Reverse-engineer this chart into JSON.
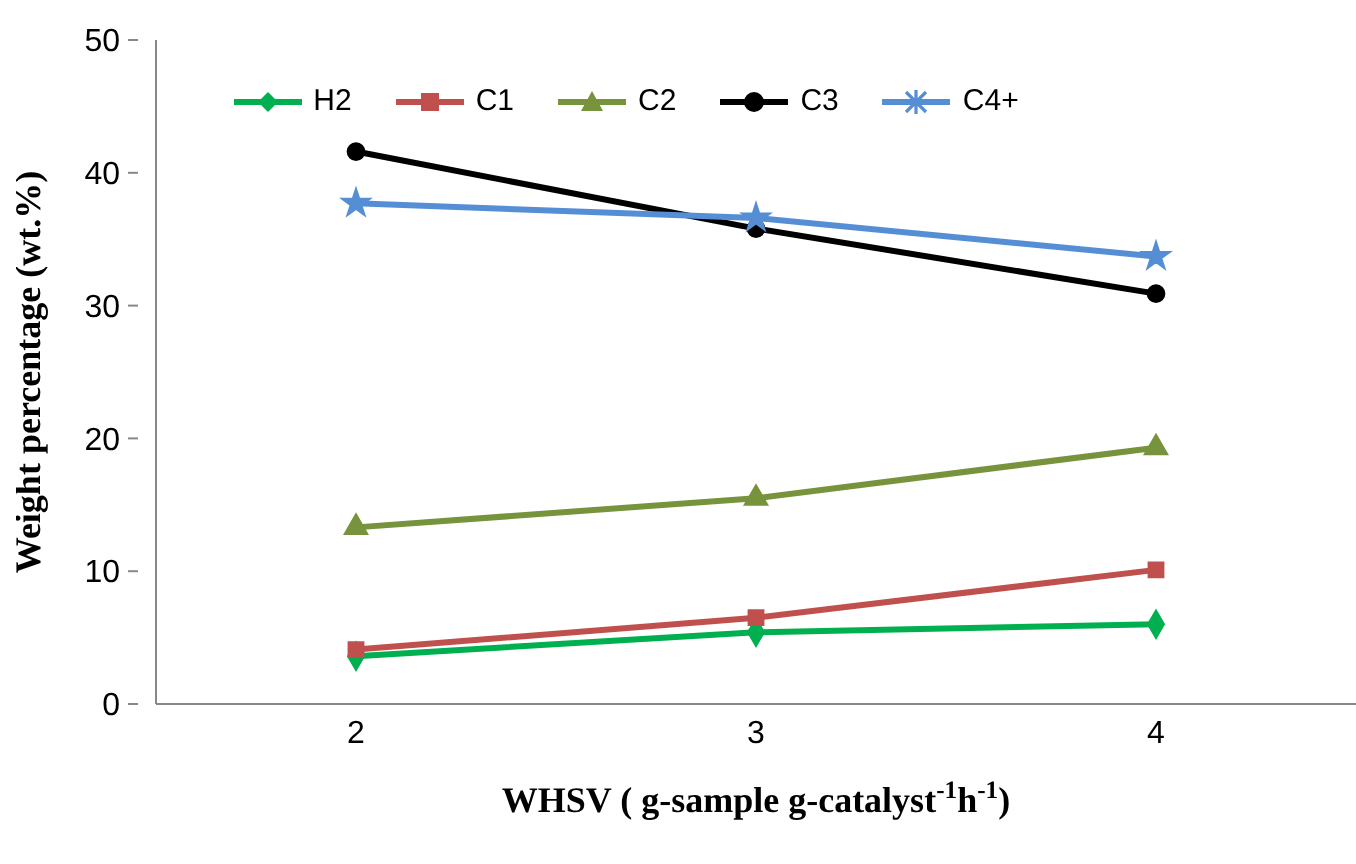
{
  "chart_data": {
    "type": "line",
    "xlabel": "WHSV ( g-sample g-catalyst$^{-1}$h$^{-1}$)",
    "ylabel": "Weight percentage (wt.%)",
    "x": [
      2,
      3,
      4
    ],
    "xlim": [
      1.5,
      4.5
    ],
    "xticks": [
      2,
      3,
      4
    ],
    "ylim": [
      0,
      50
    ],
    "yticks": [
      0,
      10,
      20,
      30,
      40,
      50
    ],
    "grid": false,
    "legend": "top",
    "series": [
      {
        "name": "H2",
        "color": "#00b050",
        "marker": "diamond",
        "values": [
          3.6,
          5.4,
          6.0
        ]
      },
      {
        "name": "C1",
        "color": "#c0504d",
        "marker": "square",
        "values": [
          4.1,
          6.5,
          10.1
        ]
      },
      {
        "name": "C2",
        "color": "#77933c",
        "marker": "triangle",
        "values": [
          13.3,
          15.5,
          19.3
        ]
      },
      {
        "name": "C3",
        "color": "#000000",
        "marker": "circle",
        "values": [
          41.6,
          35.8,
          30.9
        ]
      },
      {
        "name": "C4+",
        "color": "#558ed5",
        "marker": "star",
        "values": [
          37.7,
          36.6,
          33.7
        ]
      }
    ]
  }
}
